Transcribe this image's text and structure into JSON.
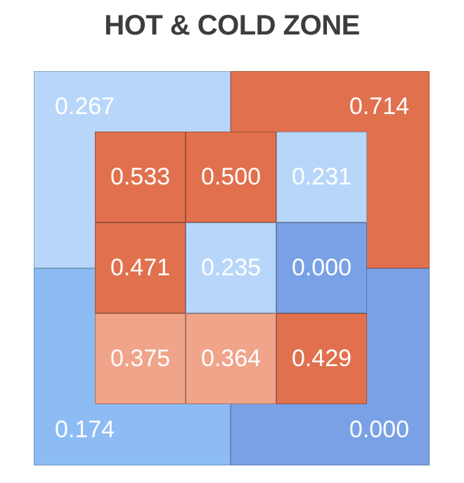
{
  "title": "HOT & COLD ZONE",
  "colors": {
    "light_blue": "#b8d6fa",
    "mid_blue": "#8dbcf5",
    "deep_blue": "#7aa1e5",
    "orange": "#e1714e",
    "light_orange": "#f0a48a"
  },
  "chart_data": {
    "type": "heatmap",
    "title": "HOT & COLD ZONE",
    "outer_zones": [
      {
        "position": "top-left",
        "value": "0.267",
        "color": "#b8d6fa"
      },
      {
        "position": "top-right",
        "value": "0.714",
        "color": "#e1714e"
      },
      {
        "position": "bottom-left",
        "value": "0.174",
        "color": "#8dbcf5"
      },
      {
        "position": "bottom-right",
        "value": "0.000",
        "color": "#7aa1e5"
      }
    ],
    "inner_grid": [
      [
        {
          "value": "0.533",
          "color": "#e1714e"
        },
        {
          "value": "0.500",
          "color": "#e1714e"
        },
        {
          "value": "0.231",
          "color": "#b8d6fa"
        }
      ],
      [
        {
          "value": "0.471",
          "color": "#e1714e"
        },
        {
          "value": "0.235",
          "color": "#b8d6fa"
        },
        {
          "value": "0.000",
          "color": "#7aa1e5"
        }
      ],
      [
        {
          "value": "0.375",
          "color": "#f0a48a"
        },
        {
          "value": "0.364",
          "color": "#f0a48a"
        },
        {
          "value": "0.429",
          "color": "#e1714e"
        }
      ]
    ]
  }
}
